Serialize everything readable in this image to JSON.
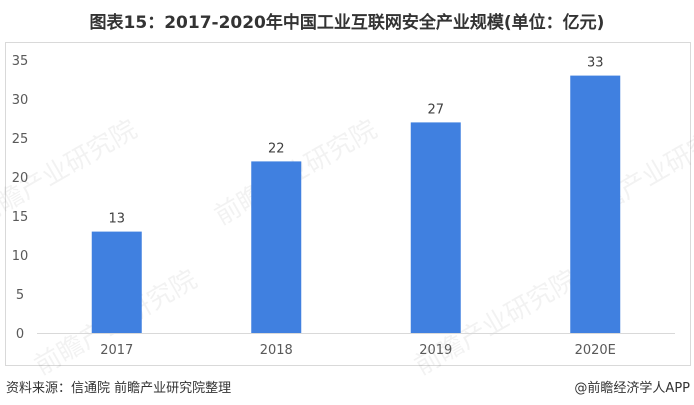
{
  "title": "图表15：2017-2020年中国工业互联网安全产业规模(单位：亿元)",
  "footer": {
    "source": "资料来源：信通院 前瞻产业研究院整理",
    "credit": "@前瞻经济学人APP"
  },
  "watermark": "前瞻产业研究院",
  "chart_data": {
    "type": "bar",
    "title": "图表15：2017-2020年中国工业互联网安全产业规模(单位：亿元)",
    "categories": [
      "2017",
      "2018",
      "2019",
      "2020E"
    ],
    "values": [
      13,
      22,
      27,
      33
    ],
    "data_labels": [
      "13",
      "22",
      "27",
      "33"
    ],
    "xlabel": "",
    "ylabel": "",
    "ylim": [
      0,
      35
    ],
    "yticks": [
      0,
      5,
      10,
      15,
      20,
      25,
      30,
      35
    ],
    "grid": false,
    "legend": "none",
    "bar_color": "#4080e0"
  }
}
